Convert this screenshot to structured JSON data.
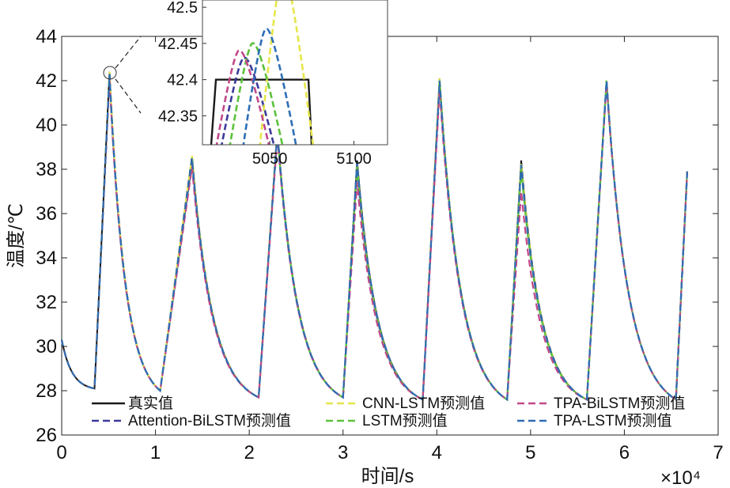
{
  "chart_data": {
    "type": "line",
    "xlabel": "时间/s",
    "ylabel": "温度/℃",
    "x_multiplier": "×10⁴",
    "xlim": [
      0,
      7
    ],
    "ylim": [
      26,
      44
    ],
    "x_ticks": [
      0,
      1,
      2,
      3,
      4,
      5,
      6,
      7
    ],
    "y_ticks": [
      26,
      28,
      30,
      32,
      34,
      36,
      38,
      40,
      42,
      44
    ],
    "grid": false,
    "legend_position": "bottom",
    "x_unit_scale": 10000,
    "cycle_points": [
      [
        0.0,
        30.3
      ],
      [
        0.35,
        28.1
      ],
      [
        0.51,
        42.4
      ],
      [
        1.05,
        28.0
      ],
      [
        1.39,
        38.6
      ],
      [
        2.1,
        27.7
      ],
      [
        2.3,
        39.8
      ],
      [
        3.0,
        27.7
      ],
      [
        3.15,
        38.4
      ],
      [
        3.85,
        27.6
      ],
      [
        4.03,
        42.1
      ],
      [
        4.75,
        27.6
      ],
      [
        4.9,
        38.4
      ],
      [
        5.6,
        27.6
      ],
      [
        5.81,
        42.0
      ],
      [
        6.55,
        27.6
      ],
      [
        6.67,
        37.9
      ]
    ],
    "series": [
      {
        "name": "真实值",
        "color": "#1a1a1a",
        "dash": "solid",
        "peak_offsets": [
          0,
          0,
          0,
          0,
          0,
          0,
          0,
          0
        ]
      },
      {
        "name": "Attention-BiLSTM预测值",
        "color": "#3a3a9a",
        "dash": "dashed",
        "peak_offsets": [
          0.05,
          -0.2,
          -0.3,
          -0.1,
          -0.4,
          -0.2,
          -0.3,
          0
        ]
      },
      {
        "name": "CNN-LSTM预测值",
        "color": "#e6e64a",
        "dash": "dashed",
        "peak_offsets": [
          0.1,
          0,
          0,
          0,
          -0.2,
          0,
          -0.1,
          0
        ]
      },
      {
        "name": "LSTM预测值",
        "color": "#5cc13a",
        "dash": "dashed",
        "peak_offsets": [
          -0.05,
          -0.1,
          -0.2,
          -0.2,
          -0.3,
          -0.1,
          -0.4,
          0
        ]
      },
      {
        "name": "TPA-BiLSTM预测值",
        "color": "#c2488a",
        "dash": "dashed",
        "peak_offsets": [
          0.03,
          -0.3,
          -0.5,
          -0.3,
          -1.0,
          -0.5,
          -1.4,
          -0.1
        ]
      },
      {
        "name": "TPA-LSTM预测值",
        "color": "#2e6db4",
        "dash": "dashed",
        "peak_offsets": [
          0.07,
          -0.1,
          -0.1,
          -0.1,
          -0.1,
          -0.1,
          -0.2,
          0
        ]
      }
    ],
    "inset": {
      "x_ticks": [
        5050,
        5100
      ],
      "y_ticks": [
        42.35,
        42.4,
        42.45,
        42.5
      ],
      "xlim": [
        5010,
        5120
      ],
      "ylim": [
        42.31,
        42.51
      ],
      "true_value": 42.4,
      "true_x_range": [
        5018,
        5073
      ],
      "series_peaks": [
        {
          "name": "Attention-BiLSTM预测值",
          "x": 5035,
          "y": 42.43
        },
        {
          "name": "CNN-LSTM预测值",
          "x": 5058,
          "y": 42.55
        },
        {
          "name": "LSTM预测值",
          "x": 5040,
          "y": 42.45
        },
        {
          "name": "TPA-BiLSTM预测值",
          "x": 5032,
          "y": 42.44
        },
        {
          "name": "TPA-LSTM预测值",
          "x": 5048,
          "y": 42.47
        }
      ]
    }
  }
}
